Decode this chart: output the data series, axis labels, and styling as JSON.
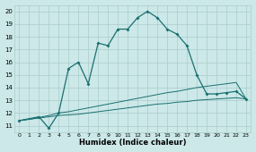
{
  "xlabel": "Humidex (Indice chaleur)",
  "xlim": [
    -0.5,
    23.5
  ],
  "ylim": [
    10.5,
    20.5
  ],
  "xticks": [
    0,
    1,
    2,
    3,
    4,
    5,
    6,
    7,
    8,
    9,
    10,
    11,
    12,
    13,
    14,
    15,
    16,
    17,
    18,
    19,
    20,
    21,
    22,
    23
  ],
  "yticks": [
    11,
    12,
    13,
    14,
    15,
    16,
    17,
    18,
    19,
    20
  ],
  "background_color": "#cce8e8",
  "grid_color": "#aacccc",
  "line_color": "#1a7070",
  "line1_x": [
    0,
    1,
    2,
    3,
    4,
    5,
    6,
    7,
    8,
    9,
    10,
    11,
    12,
    13,
    14,
    15,
    16,
    17,
    18,
    19,
    20,
    21,
    22,
    23
  ],
  "line1_y": [
    11.4,
    11.5,
    11.6,
    11.7,
    11.8,
    11.85,
    11.9,
    12.0,
    12.1,
    12.2,
    12.3,
    12.4,
    12.5,
    12.6,
    12.7,
    12.75,
    12.85,
    12.9,
    13.0,
    13.05,
    13.1,
    13.15,
    13.2,
    13.1
  ],
  "line2_x": [
    0,
    1,
    2,
    3,
    4,
    5,
    6,
    7,
    8,
    9,
    10,
    11,
    12,
    13,
    14,
    15,
    16,
    17,
    18,
    19,
    20,
    21,
    22,
    23
  ],
  "line2_y": [
    11.4,
    11.5,
    11.65,
    11.8,
    12.0,
    12.1,
    12.25,
    12.4,
    12.55,
    12.7,
    12.85,
    13.0,
    13.15,
    13.3,
    13.45,
    13.6,
    13.7,
    13.85,
    14.0,
    14.1,
    14.2,
    14.3,
    14.4,
    13.1
  ],
  "line3_x": [
    0,
    2,
    3,
    4,
    5,
    6,
    7,
    8,
    9,
    10,
    11,
    12,
    13,
    14,
    15,
    16,
    17,
    18,
    19,
    20,
    21,
    22,
    23
  ],
  "line3_y": [
    11.4,
    11.7,
    10.8,
    12.0,
    15.5,
    16.0,
    14.3,
    17.5,
    17.3,
    18.6,
    18.6,
    19.5,
    20.0,
    19.5,
    18.6,
    18.2,
    17.3,
    15.0,
    13.5,
    13.5,
    13.6,
    13.7,
    13.1
  ]
}
